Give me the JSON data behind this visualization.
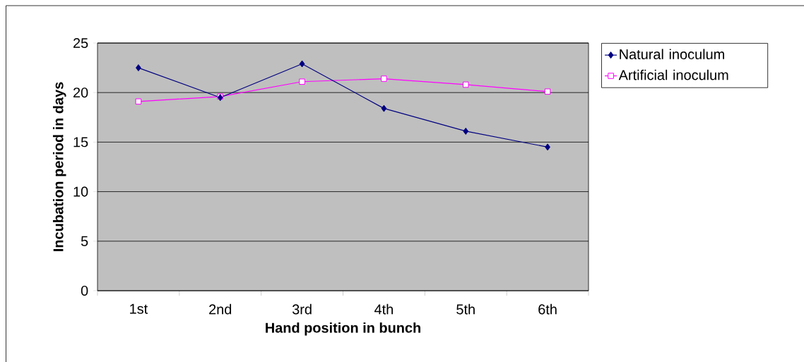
{
  "chart_data": {
    "type": "line",
    "xlabel": "Hand position in bunch",
    "ylabel": "Incubation period in days",
    "categories": [
      "1st",
      "2nd",
      "3rd",
      "4th",
      "5th",
      "6th"
    ],
    "series": [
      {
        "name": "Natural inoculum",
        "color": "#000080",
        "marker": "diamond",
        "values": [
          22.5,
          19.5,
          22.9,
          18.4,
          16.1,
          14.5
        ]
      },
      {
        "name": "Artificial inoculum",
        "color": "#ff00ff",
        "marker": "square",
        "values": [
          19.1,
          19.6,
          21.1,
          21.4,
          20.8,
          20.1
        ]
      }
    ],
    "ylim": [
      0,
      25
    ],
    "yticks": [
      0,
      5,
      10,
      15,
      20,
      25
    ],
    "grid": "y",
    "legend": "right",
    "line_style": "solid"
  }
}
